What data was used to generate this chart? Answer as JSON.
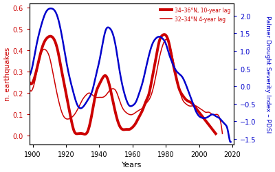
{
  "xlabel": "Years",
  "ylabel_left": "n. earthquakes",
  "ylabel_right": "Palmer Drought Severity Index – PDSI",
  "left_color": "#cc0000",
  "right_color": "#0000cc",
  "xlim": [
    1898,
    2021
  ],
  "ylim_left": [
    -0.04,
    0.62
  ],
  "ylim_right": [
    -1.65,
    2.35
  ],
  "xticks": [
    1900,
    1920,
    1940,
    1960,
    1980,
    2000,
    2020
  ],
  "yticks_left": [
    0.0,
    0.1,
    0.2,
    0.3,
    0.4,
    0.5,
    0.6
  ],
  "yticks_right": [
    -1.5,
    -1.0,
    -0.5,
    0.0,
    0.5,
    1.0,
    1.5,
    2.0
  ],
  "legend": [
    {
      "label": "34–36°N, 10-year lag",
      "lw": 2.8
    },
    {
      "label": "32–34°N 4-year lag",
      "lw": 1.1
    }
  ],
  "thick_red_x": [
    1898,
    1900,
    1903,
    1906,
    1909,
    1912,
    1915,
    1917,
    1920,
    1923,
    1925,
    1927,
    1930,
    1933,
    1936,
    1938,
    1940,
    1942,
    1944,
    1946,
    1948,
    1950,
    1952,
    1954,
    1956,
    1958,
    1960,
    1962,
    1964,
    1966,
    1968,
    1970,
    1972,
    1974,
    1976,
    1978,
    1980,
    1982,
    1984,
    1986,
    1988,
    1990,
    1992,
    1994,
    1996,
    1998,
    2000,
    2002,
    2004,
    2006,
    2008,
    2010
  ],
  "thick_red_y": [
    0.25,
    0.25,
    0.33,
    0.42,
    0.46,
    0.46,
    0.4,
    0.32,
    0.2,
    0.08,
    0.02,
    0.01,
    0.01,
    0.02,
    0.12,
    0.2,
    0.24,
    0.27,
    0.28,
    0.24,
    0.17,
    0.1,
    0.05,
    0.03,
    0.03,
    0.03,
    0.04,
    0.06,
    0.09,
    0.12,
    0.16,
    0.2,
    0.28,
    0.36,
    0.44,
    0.47,
    0.47,
    0.43,
    0.35,
    0.28,
    0.22,
    0.19,
    0.17,
    0.16,
    0.15,
    0.13,
    0.11,
    0.09,
    0.07,
    0.05,
    0.03,
    0.01
  ],
  "thin_red_x": [
    1898,
    1900,
    1903,
    1906,
    1908,
    1910,
    1912,
    1914,
    1916,
    1918,
    1920,
    1922,
    1924,
    1926,
    1928,
    1930,
    1932,
    1934,
    1936,
    1938,
    1940,
    1942,
    1944,
    1946,
    1948,
    1950,
    1952,
    1954,
    1956,
    1958,
    1960,
    1962,
    1964,
    1966,
    1968,
    1970,
    1972,
    1974,
    1976,
    1978,
    1980,
    1982,
    1984,
    1986,
    1988,
    1990,
    1992,
    1994,
    1996,
    1998,
    2000,
    2002,
    2004,
    2006,
    2008,
    2010,
    2012,
    2014
  ],
  "thin_red_y": [
    0.22,
    0.22,
    0.32,
    0.4,
    0.4,
    0.37,
    0.3,
    0.22,
    0.15,
    0.1,
    0.08,
    0.08,
    0.09,
    0.11,
    0.14,
    0.17,
    0.19,
    0.2,
    0.19,
    0.18,
    0.18,
    0.18,
    0.19,
    0.21,
    0.22,
    0.21,
    0.17,
    0.13,
    0.11,
    0.1,
    0.1,
    0.11,
    0.12,
    0.13,
    0.15,
    0.17,
    0.21,
    0.28,
    0.36,
    0.42,
    0.45,
    0.43,
    0.37,
    0.29,
    0.22,
    0.17,
    0.15,
    0.14,
    0.14,
    0.14,
    0.13,
    0.12,
    0.11,
    0.11,
    0.1,
    0.1,
    0.09,
    0.01
  ],
  "blue_x": [
    1898,
    1900,
    1902,
    1905,
    1908,
    1911,
    1913,
    1915,
    1918,
    1921,
    1924,
    1927,
    1930,
    1933,
    1936,
    1938,
    1940,
    1942,
    1944,
    1946,
    1948,
    1950,
    1952,
    1954,
    1956,
    1958,
    1960,
    1962,
    1964,
    1966,
    1968,
    1970,
    1972,
    1974,
    1976,
    1978,
    1980,
    1982,
    1984,
    1986,
    1988,
    1990,
    1992,
    1994,
    1996,
    1998,
    2000,
    2002,
    2004,
    2006,
    2008,
    2010,
    2012,
    2014,
    2016,
    2017,
    2018,
    2019
  ],
  "blue_y": [
    0.3,
    0.6,
    1.1,
    1.7,
    2.1,
    2.2,
    2.15,
    1.95,
    1.3,
    0.5,
    -0.1,
    -0.55,
    -0.6,
    -0.4,
    -0.1,
    0.3,
    0.7,
    1.2,
    1.6,
    1.65,
    1.5,
    1.1,
    0.5,
    0.0,
    -0.35,
    -0.55,
    -0.55,
    -0.45,
    -0.2,
    0.1,
    0.5,
    0.9,
    1.2,
    1.35,
    1.4,
    1.35,
    1.2,
    0.9,
    0.65,
    0.45,
    0.35,
    0.25,
    0.05,
    -0.2,
    -0.45,
    -0.7,
    -0.85,
    -0.9,
    -0.9,
    -0.85,
    -0.8,
    -0.85,
    -0.9,
    -1.0,
    -1.1,
    -1.2,
    -1.45,
    -1.58
  ]
}
